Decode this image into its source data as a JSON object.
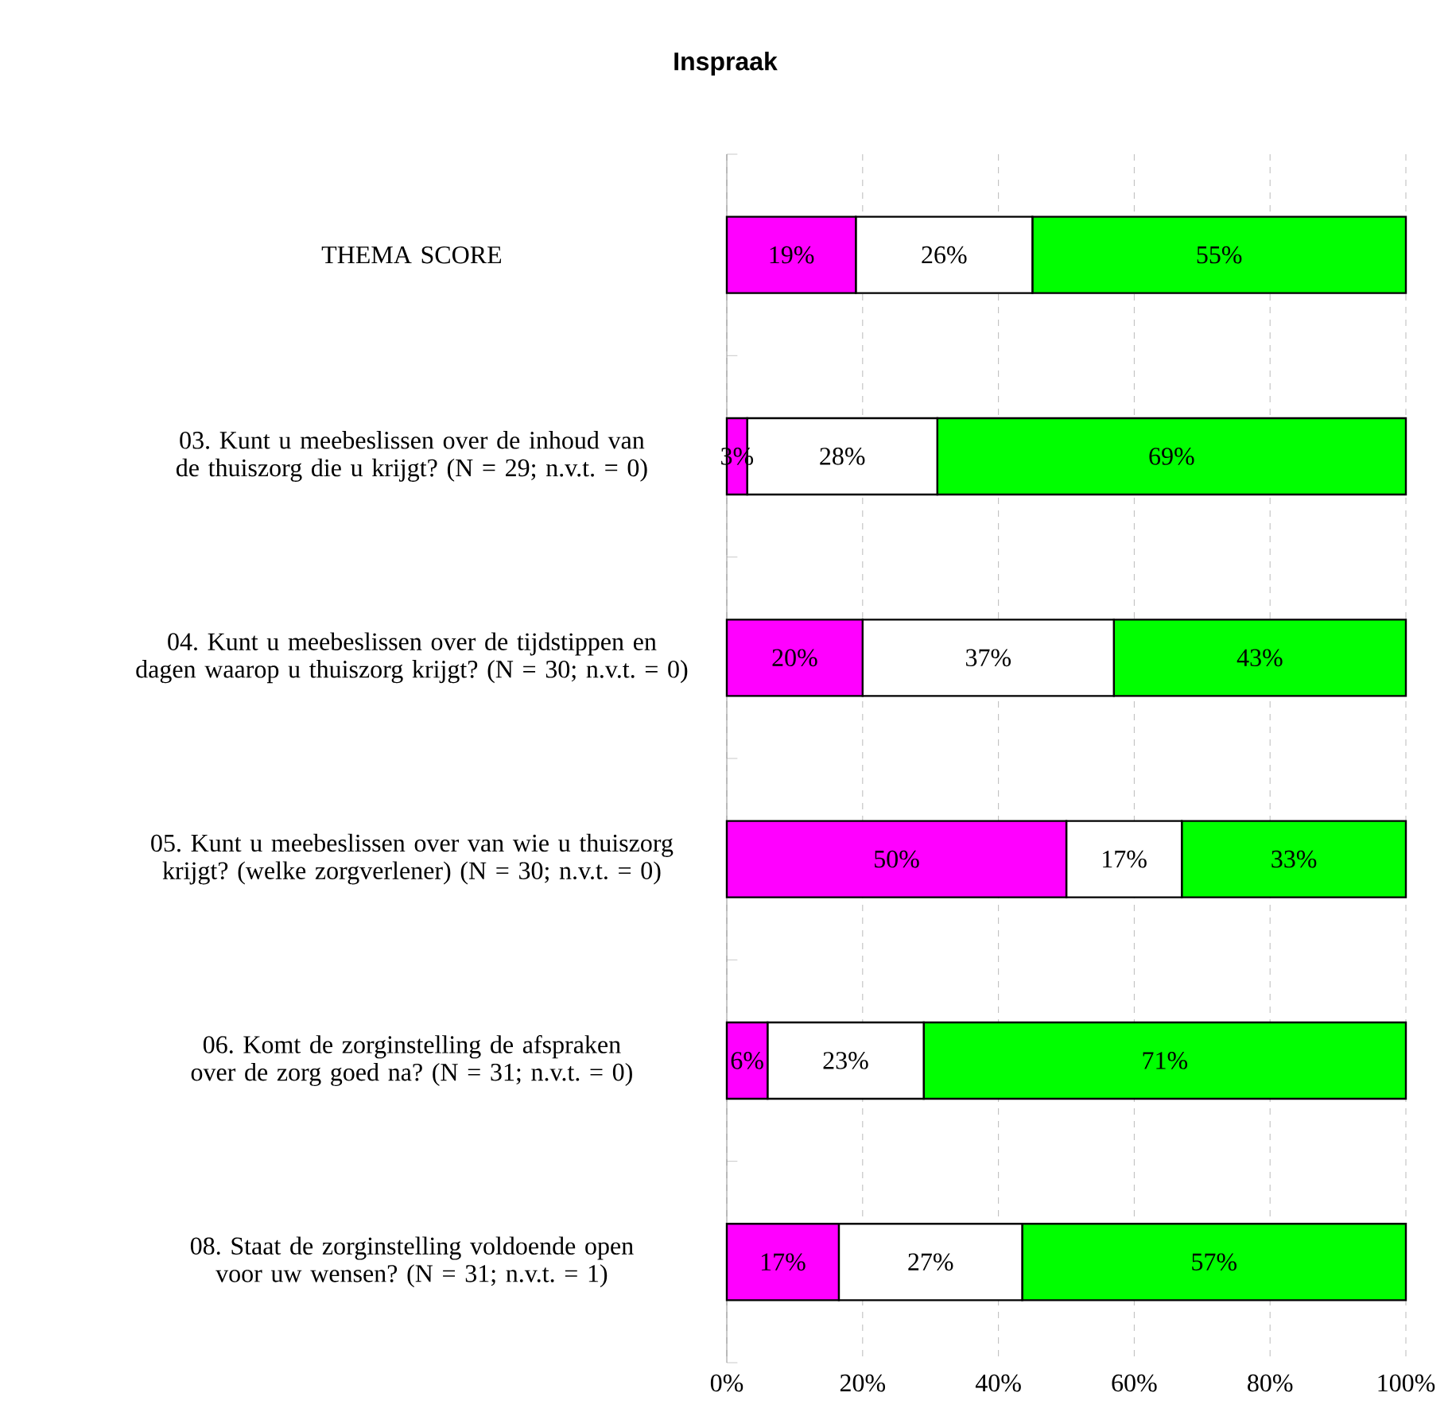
{
  "chart_data": {
    "type": "bar",
    "title": "Inspraak",
    "orientation": "horizontal",
    "stacked": true,
    "grid": "x",
    "categories": [
      "THEMA SCORE",
      "03. Kunt u meebeslissen over de inhoud van de thuiszorg die u krijgt? (N = 29; n.v.t. = 0)",
      "04. Kunt u meebeslissen over de tijdstippen en dagen waarop u thuiszorg krijgt? (N = 30; n.v.t. = 0)",
      "05. Kunt u meebeslissen over van wie u thuiszorg krijgt? (welke zorgverlener) (N = 30; n.v.t. = 0)",
      "06. Komt de zorginstelling de afspraken over de zorg goed na? (N = 31; n.v.t. = 0)",
      "08. Staat de zorginstelling voldoende open voor uw wensen? (N = 31; n.v.t. = 1)"
    ],
    "series": [
      {
        "color": "#ff00ff",
        "values": [
          19,
          3,
          20,
          50,
          6,
          16.5
        ],
        "value_labels": [
          "19%",
          "3%",
          "20%",
          "50%",
          "6%",
          "17%"
        ]
      },
      {
        "color": "#ffffff",
        "values": [
          26,
          28,
          37,
          17,
          23,
          27
        ],
        "value_labels": [
          "26%",
          "28%",
          "37%",
          "17%",
          "23%",
          "27%"
        ]
      },
      {
        "color": "#00ff00",
        "values": [
          55,
          69,
          43,
          33,
          71,
          56.5
        ],
        "value_labels": [
          "55%",
          "69%",
          "43%",
          "33%",
          "71%",
          "57%"
        ]
      }
    ],
    "xlim": [
      0,
      100
    ],
    "xticks": [
      {
        "value": 0,
        "label": "0%"
      },
      {
        "value": 20,
        "label": "20%"
      },
      {
        "value": 40,
        "label": "40%"
      },
      {
        "value": 60,
        "label": "60%"
      },
      {
        "value": 80,
        "label": "80%"
      },
      {
        "value": 100,
        "label": "100%"
      }
    ]
  }
}
